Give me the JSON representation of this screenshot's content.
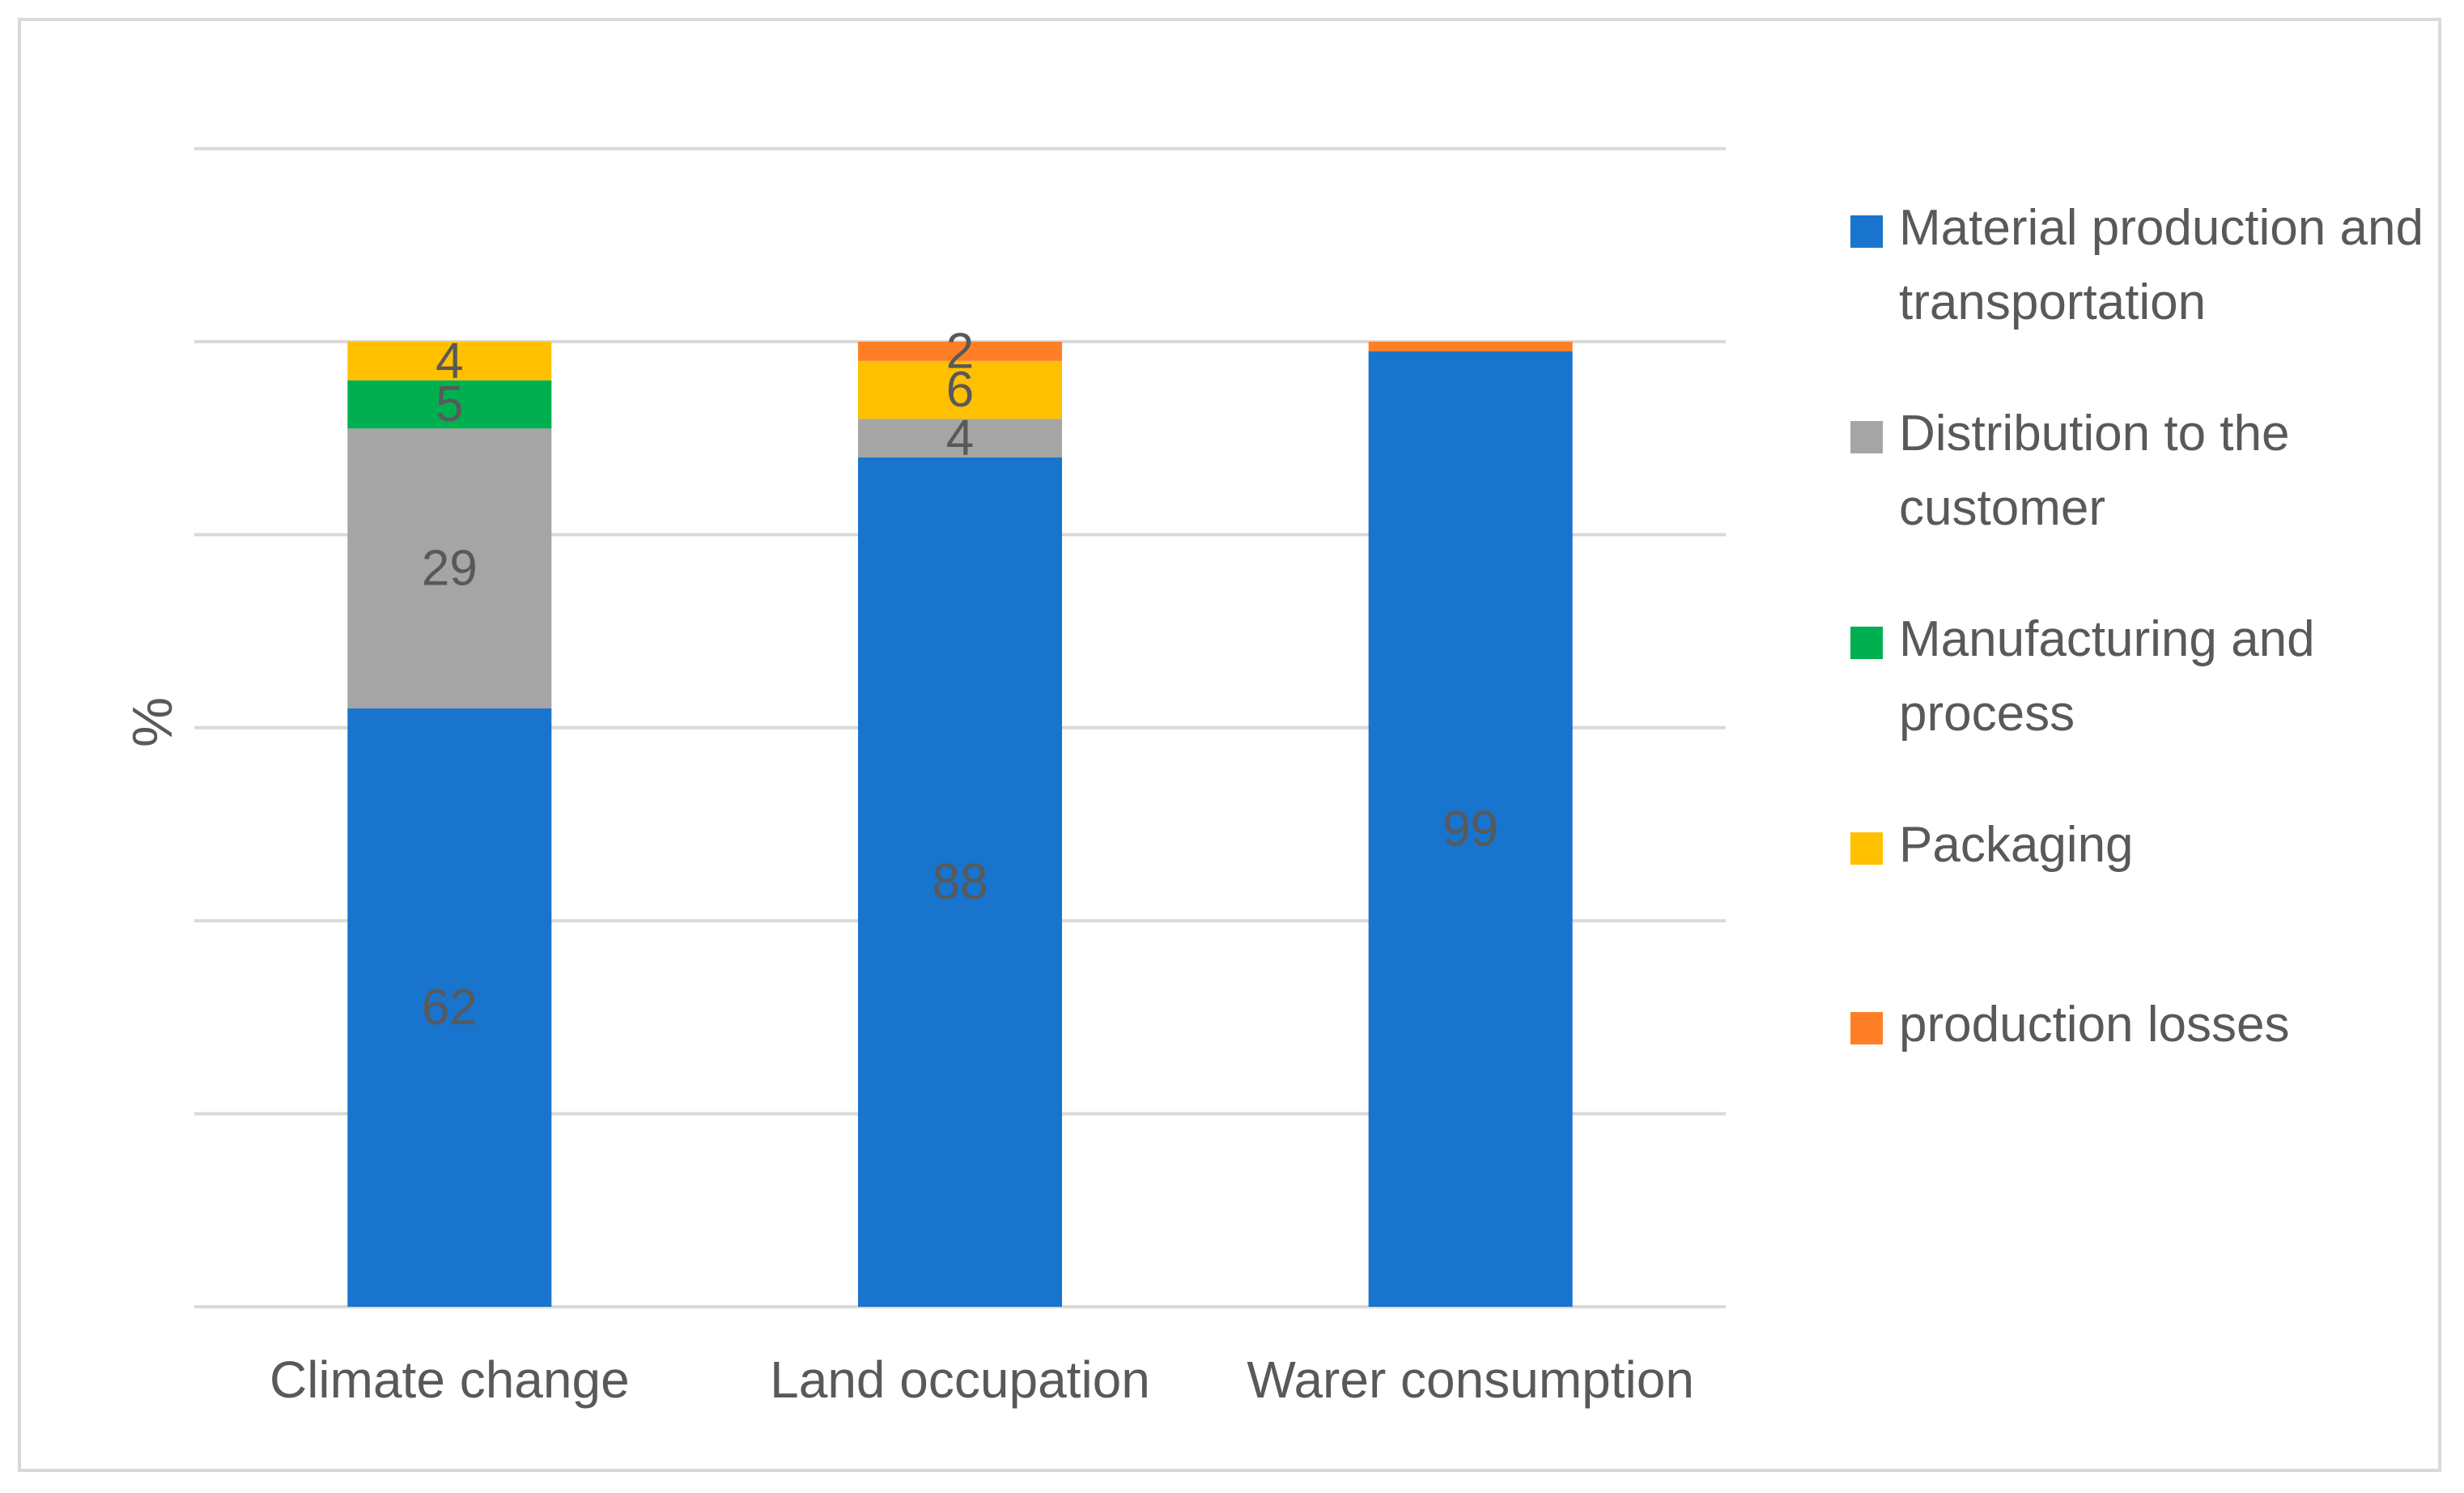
{
  "chart_data": {
    "type": "bar",
    "stacked": true,
    "title": "",
    "xlabel": "",
    "ylabel": "%",
    "ylim": [
      0,
      100
    ],
    "categories": [
      "Climate change",
      "Land occupation",
      "Warer consumption"
    ],
    "series": [
      {
        "name": "Material production and transportation",
        "color": "#1874cd",
        "values": [
          62,
          88,
          99
        ],
        "labels": [
          "62",
          "88",
          "99"
        ]
      },
      {
        "name": "Distribution to the customer",
        "color": "#a5a5a5",
        "values": [
          29,
          4,
          0
        ],
        "labels": [
          "29",
          "4",
          ""
        ]
      },
      {
        "name": "Manufacturing and process",
        "color": "#00b050",
        "values": [
          5,
          0,
          0
        ],
        "labels": [
          "5",
          "",
          ""
        ]
      },
      {
        "name": "Packaging",
        "color": "#ffc000",
        "values": [
          4,
          6,
          0
        ],
        "labels": [
          "4",
          "6",
          ""
        ]
      },
      {
        "name": "production losses",
        "color": "#ff7f27",
        "values": [
          0,
          2,
          1
        ],
        "labels": [
          "",
          "2",
          ""
        ]
      }
    ],
    "legend_position": "right",
    "grid": true
  }
}
